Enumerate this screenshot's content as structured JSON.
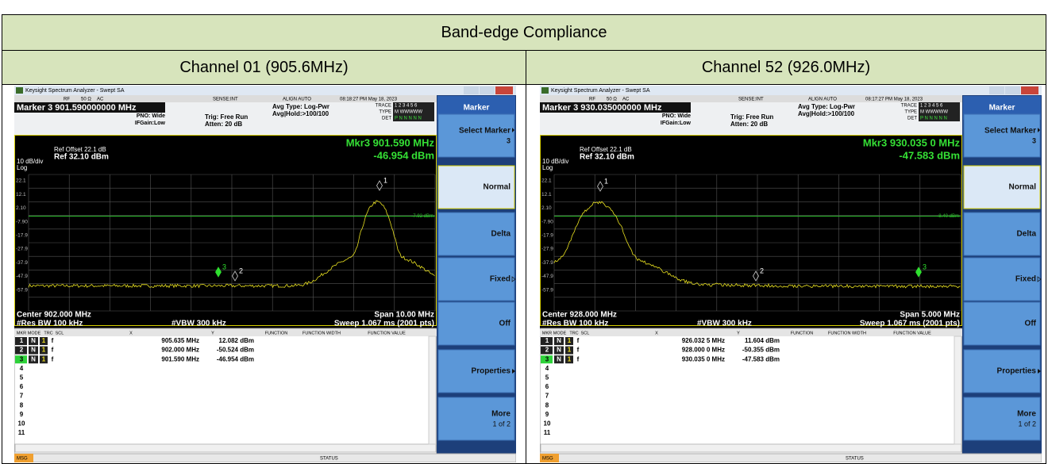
{
  "header": {
    "title": "Band-edge Compliance"
  },
  "columns": [
    {
      "label": "Channel 01 (905.6MHz)",
      "screen": {
        "app_title": "Keysight Spectrum Analyzer - Swept SA",
        "rf": "RF",
        "imp": "50 Ω",
        "ac": "AC",
        "sense": "SENSE:INT",
        "align": "ALIGN AUTO",
        "time": "08:18:27 PM May 18, 2023",
        "marker_readout": "Marker 3 901.590000000 MHz",
        "pno": "PNO: Wide",
        "ifgain": "IFGain:Low",
        "trig": "Trig: Free Run",
        "atten": "Atten: 20 dB",
        "avg_type": "Avg Type: Log-Pwr",
        "avg_hold": "Avg|Hold:>100/100",
        "trace_info": [
          [
            "TRACE",
            "1 2 3 4 5 6"
          ],
          [
            "TYPE",
            "M WWWWW"
          ],
          [
            "DET",
            "P N N N N N"
          ]
        ],
        "ref_offset": "Ref Offset 22.1 dB",
        "ref": "Ref 32.10 dBm",
        "scale": "10 dB/div",
        "log": "Log",
        "mkr": "Mkr3 901.590 MHz",
        "mkr_level": "-46.954 dBm",
        "y_labels": [
          "22.1",
          "12.1",
          "2.10",
          "-7.90",
          "-17.9",
          "-27.9",
          "-37.9",
          "-47.9",
          "-57.9"
        ],
        "limit_label": "-7.92 dBm",
        "marker_ids": [
          "1",
          "2",
          "3"
        ],
        "center": "Center 902.000 MHz",
        "span": "Span 10.00 MHz",
        "rbw": "#Res BW 100 kHz",
        "vbw": "#VBW 300 kHz",
        "sweep": "Sweep  1.067 ms (2001 pts)",
        "table_header": [
          "MKR",
          "MODE",
          "TRC",
          "SCL",
          "X",
          "Y",
          "FUNCTION",
          "FUNCTION WIDTH",
          "FUNCTION VALUE"
        ],
        "table_rows": [
          [
            "1",
            "N",
            "1",
            "f",
            "905.635 MHz",
            "12.082 dBm"
          ],
          [
            "2",
            "N",
            "1",
            "f",
            "902.000 MHz",
            "-50.524 dBm"
          ],
          [
            "3",
            "N",
            "1",
            "f",
            "901.590 MHz",
            "-46.954 dBm"
          ]
        ],
        "row_numbers": [
          "4",
          "5",
          "6",
          "7",
          "8",
          "9",
          "10",
          "11"
        ],
        "softkey_title": "Marker",
        "softkeys": [
          "Select Marker",
          "Normal",
          "Delta",
          "Fixed",
          "Off",
          "Properties",
          "More"
        ],
        "select_value": "3",
        "more_page": "1 of 2",
        "msg": "MSG",
        "status": "STATUS"
      }
    },
    {
      "label": "Channel 52 (926.0MHz)",
      "screen": {
        "app_title": "Keysight Spectrum Analyzer - Swept SA",
        "rf": "RF",
        "imp": "50 Ω",
        "ac": "AC",
        "sense": "SENSE:INT",
        "align": "ALIGN AUTO",
        "time": "08:17:27 PM May 18, 2023",
        "marker_readout": "Marker 3 930.035000000 MHz",
        "pno": "PNO: Wide",
        "ifgain": "IFGain:Low",
        "trig": "Trig: Free Run",
        "atten": "Atten: 20 dB",
        "avg_type": "Avg Type: Log-Pwr",
        "avg_hold": "Avg|Hold:>100/100",
        "trace_info": [
          [
            "TRACE",
            "1 2 3 4 5 6"
          ],
          [
            "TYPE",
            "M WWWWW"
          ],
          [
            "DET",
            "P N N N N N"
          ]
        ],
        "ref_offset": "Ref Offset 22.1 dB",
        "ref": "Ref 32.10 dBm",
        "scale": "10 dB/div",
        "log": "Log",
        "mkr": "Mkr3 930.035 0 MHz",
        "mkr_level": "-47.583 dBm",
        "y_labels": [
          "22.1",
          "12.1",
          "2.10",
          "-7.90",
          "-17.9",
          "-27.9",
          "-37.9",
          "-47.9",
          "-57.9"
        ],
        "limit_label": "-8.40 dBm",
        "marker_ids": [
          "1",
          "2",
          "3"
        ],
        "center": "Center 928.000 MHz",
        "span": "Span 5.000 MHz",
        "rbw": "#Res BW 100 kHz",
        "vbw": "#VBW 300 kHz",
        "sweep": "Sweep  1.067 ms (2001 pts)",
        "table_header": [
          "MKR",
          "MODE",
          "TRC",
          "SCL",
          "X",
          "Y",
          "FUNCTION",
          "FUNCTION WIDTH",
          "FUNCTION VALUE"
        ],
        "table_rows": [
          [
            "1",
            "N",
            "1",
            "f",
            "926.032 5 MHz",
            "11.604 dBm"
          ],
          [
            "2",
            "N",
            "1",
            "f",
            "928.000 0 MHz",
            "-50.355 dBm"
          ],
          [
            "3",
            "N",
            "1",
            "f",
            "930.035 0 MHz",
            "-47.583 dBm"
          ]
        ],
        "row_numbers": [
          "4",
          "5",
          "6",
          "7",
          "8",
          "9",
          "10",
          "11"
        ],
        "softkey_title": "Marker",
        "softkeys": [
          "Select Marker",
          "Normal",
          "Delta",
          "Fixed",
          "Off",
          "Properties",
          "More"
        ],
        "select_value": "3",
        "more_page": "1 of 2",
        "msg": "MSG",
        "status": "STATUS"
      }
    }
  ]
}
